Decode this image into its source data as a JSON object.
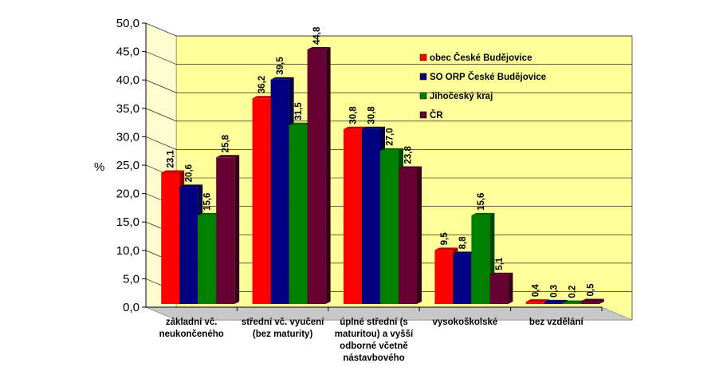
{
  "chart_data": {
    "type": "bar",
    "title": "",
    "xlabel": "",
    "ylabel": "%",
    "ylim": [
      0,
      50
    ],
    "ytick_step": 5,
    "yticks": [
      "0,0",
      "5,0",
      "10,0",
      "15,0",
      "20,0",
      "25,0",
      "30,0",
      "35,0",
      "40,0",
      "45,0",
      "50,0"
    ],
    "grid": true,
    "legend_position": "top-right",
    "categories": [
      [
        "základní vč.",
        "neukončeného"
      ],
      [
        "střední vč. vyučení",
        "(bez maturity)"
      ],
      [
        "úplné střední (s",
        "maturitou) a vyšší",
        "odborné včetně",
        "nástavbového"
      ],
      [
        "vysokoškolské"
      ],
      [
        "bez vzdělání"
      ]
    ],
    "series": [
      {
        "name": "obec České Budějovice",
        "color": "#ff0000",
        "values": [
          23.1,
          36.2,
          30.8,
          9.5,
          0.4
        ],
        "labels": [
          "23,1",
          "36,2",
          "30,8",
          "9,5",
          "0,4"
        ]
      },
      {
        "name": "SO ORP České Budějovice",
        "color": "#000080",
        "values": [
          20.6,
          39.5,
          30.8,
          8.8,
          0.3
        ],
        "labels": [
          "20,6",
          "39,5",
          "30,8",
          "8,8",
          "0,3"
        ]
      },
      {
        "name": "Jihočeský kraj",
        "color": "#008000",
        "values": [
          15.6,
          31.5,
          27.0,
          15.6,
          0.2
        ],
        "labels": [
          "15,6",
          "31,5",
          "27,0",
          "15,6",
          "0,2"
        ]
      },
      {
        "name": "ČR",
        "color": "#660033",
        "values": [
          25.8,
          44.8,
          23.8,
          5.1,
          0.5
        ],
        "labels": [
          "25,8",
          "44,8",
          "23,8",
          "5,1",
          "0,5"
        ]
      }
    ]
  }
}
